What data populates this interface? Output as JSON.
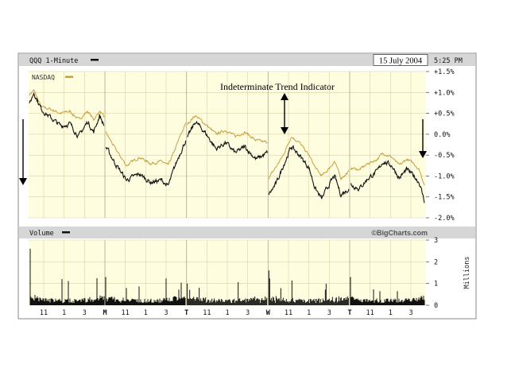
{
  "chart_data": [
    {
      "type": "line",
      "symbol_label": "QQQ 1-Minute",
      "date": "15 July 2004",
      "time": "5:25 PM",
      "annotation": "Indeterminate Trend Indicator",
      "ylim": [
        -2.0,
        1.5
      ],
      "y_ticks": [
        "+1.5%",
        "+1.0%",
        "+0.5%",
        "0.0%",
        "-0.5%",
        "-1.0%",
        "-1.5%",
        "-2.0%"
      ],
      "y_tick_values": [
        1.5,
        1.0,
        0.5,
        0.0,
        -0.5,
        -1.0,
        -1.5,
        -2.0
      ],
      "x_ticks": [
        "11",
        "1",
        "3",
        "M",
        "11",
        "1",
        "3",
        "T",
        "11",
        "1",
        "3",
        "W",
        "11",
        "1",
        "3",
        "T",
        "11",
        "1",
        "3"
      ],
      "bold_ticks": [
        "M",
        "T",
        "W"
      ],
      "grid": true,
      "series": [
        {
          "name": "QQQ 1-Minute",
          "color": "#111111",
          "days": [
            [
              [
                0,
                0.7
              ],
              [
                0.06,
                1.0
              ],
              [
                0.16,
                0.6
              ],
              [
                0.28,
                0.4
              ],
              [
                0.42,
                0.2
              ],
              [
                0.54,
                0.25
              ],
              [
                0.66,
                -0.05
              ],
              [
                0.78,
                0.3
              ],
              [
                0.86,
                0.05
              ],
              [
                0.94,
                0.45
              ],
              [
                1.0,
                0.2
              ]
            ],
            [
              [
                0,
                -0.3
              ],
              [
                0.12,
                -0.7
              ],
              [
                0.26,
                -1.1
              ],
              [
                0.42,
                -0.95
              ],
              [
                0.56,
                -1.15
              ],
              [
                0.7,
                -1.1
              ],
              [
                0.78,
                -1.25
              ],
              [
                0.86,
                -0.8
              ],
              [
                0.93,
                -0.45
              ],
              [
                1.0,
                -0.15
              ]
            ],
            [
              [
                0,
                -0.1
              ],
              [
                0.1,
                0.3
              ],
              [
                0.22,
                0.05
              ],
              [
                0.36,
                -0.35
              ],
              [
                0.48,
                -0.2
              ],
              [
                0.6,
                -0.45
              ],
              [
                0.72,
                -0.3
              ],
              [
                0.86,
                -0.6
              ],
              [
                1.0,
                -0.45
              ]
            ],
            [
              [
                0,
                -1.45
              ],
              [
                0.1,
                -1.15
              ],
              [
                0.18,
                -0.75
              ],
              [
                0.28,
                -0.3
              ],
              [
                0.38,
                -0.5
              ],
              [
                0.5,
                -0.8
              ],
              [
                0.58,
                -1.3
              ],
              [
                0.66,
                -1.55
              ],
              [
                0.74,
                -1.25
              ],
              [
                0.82,
                -1.0
              ],
              [
                0.9,
                -1.45
              ],
              [
                1.0,
                -1.3
              ]
            ],
            [
              [
                0,
                -1.2
              ],
              [
                0.12,
                -1.3
              ],
              [
                0.24,
                -1.05
              ],
              [
                0.36,
                -0.9
              ],
              [
                0.44,
                -0.65
              ],
              [
                0.56,
                -0.75
              ],
              [
                0.66,
                -1.05
              ],
              [
                0.76,
                -0.85
              ],
              [
                0.86,
                -1.0
              ],
              [
                0.93,
                -1.15
              ],
              [
                1.0,
                -1.6
              ]
            ]
          ]
        },
        {
          "name": "NASDAQ",
          "color": "#c8a03c",
          "days": [
            [
              [
                0,
                0.95
              ],
              [
                0.06,
                1.05
              ],
              [
                0.16,
                0.65
              ],
              [
                0.28,
                0.6
              ],
              [
                0.42,
                0.5
              ],
              [
                0.54,
                0.55
              ],
              [
                0.66,
                0.35
              ],
              [
                0.78,
                0.55
              ],
              [
                0.86,
                0.35
              ],
              [
                0.94,
                0.55
              ],
              [
                1.0,
                0.4
              ]
            ],
            [
              [
                0,
                0.05
              ],
              [
                0.12,
                -0.35
              ],
              [
                0.26,
                -0.75
              ],
              [
                0.42,
                -0.55
              ],
              [
                0.56,
                -0.7
              ],
              [
                0.7,
                -0.65
              ],
              [
                0.78,
                -0.75
              ],
              [
                0.86,
                -0.4
              ],
              [
                0.93,
                -0.05
              ],
              [
                1.0,
                0.25
              ]
            ],
            [
              [
                0,
                0.25
              ],
              [
                0.1,
                0.45
              ],
              [
                0.22,
                0.25
              ],
              [
                0.36,
                0.0
              ],
              [
                0.48,
                0.1
              ],
              [
                0.6,
                -0.05
              ],
              [
                0.72,
                0.05
              ],
              [
                0.86,
                -0.15
              ],
              [
                1.0,
                -0.2
              ]
            ],
            [
              [
                0,
                -1.05
              ],
              [
                0.1,
                -0.75
              ],
              [
                0.18,
                -0.5
              ],
              [
                0.28,
                -0.05
              ],
              [
                0.38,
                -0.2
              ],
              [
                0.5,
                -0.5
              ],
              [
                0.58,
                -0.8
              ],
              [
                0.66,
                -1.0
              ],
              [
                0.74,
                -0.85
              ],
              [
                0.82,
                -0.65
              ],
              [
                0.9,
                -1.05
              ],
              [
                1.0,
                -0.9
              ]
            ],
            [
              [
                0,
                -0.8
              ],
              [
                0.12,
                -0.85
              ],
              [
                0.24,
                -0.7
              ],
              [
                0.36,
                -0.6
              ],
              [
                0.44,
                -0.45
              ],
              [
                0.56,
                -0.55
              ],
              [
                0.66,
                -0.75
              ],
              [
                0.76,
                -0.6
              ],
              [
                0.86,
                -0.7
              ],
              [
                0.93,
                -0.85
              ],
              [
                1.0,
                -1.2
              ]
            ]
          ]
        }
      ]
    },
    {
      "type": "bar",
      "legend_label": "Volume",
      "credit": "©BigCharts.com",
      "ylabel": "Millions",
      "ylim": [
        0,
        3
      ],
      "y_ticks": [
        "3",
        "2",
        "1",
        "0"
      ],
      "y_tick_values": [
        3,
        2,
        1,
        0
      ],
      "series": [
        {
          "name": "Volume",
          "color": "#111111",
          "day_open_spikes": [
            2.6,
            1.3,
            1.0,
            1.6,
            1.3
          ],
          "typical_range": [
            0.1,
            0.7
          ]
        }
      ]
    }
  ]
}
